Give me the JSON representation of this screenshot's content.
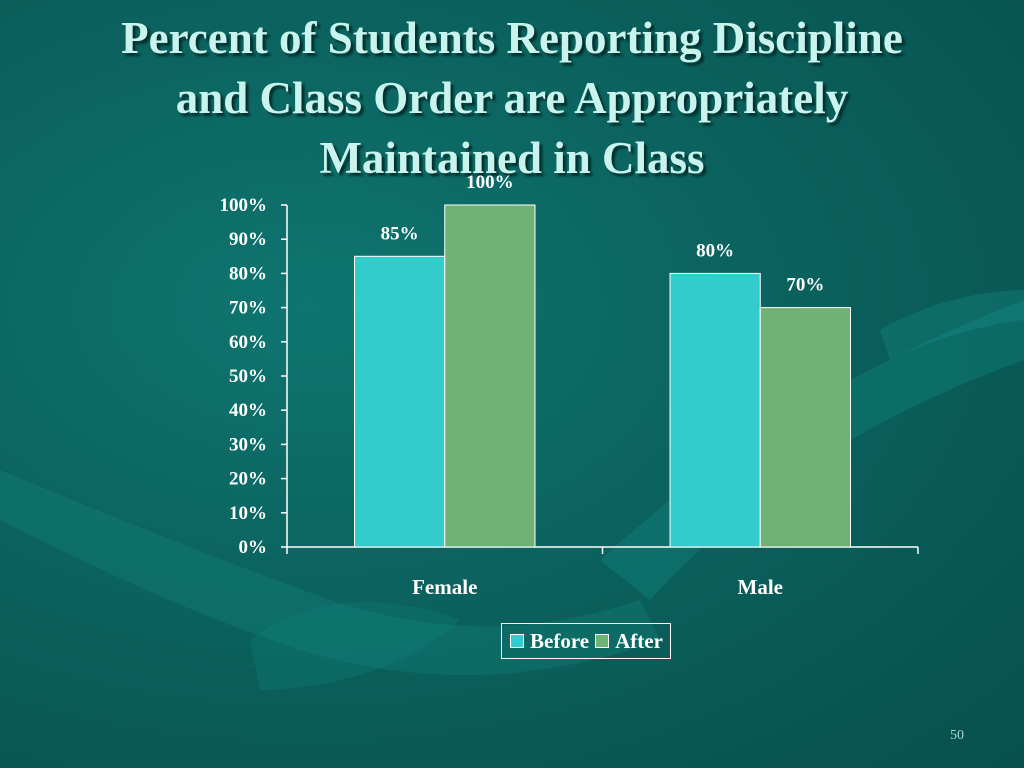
{
  "slide": {
    "title_lines": [
      "Percent of Students Reporting Discipline",
      "and Class Order are Appropriately",
      "Maintained in Class"
    ],
    "page_number": "50"
  },
  "colors": {
    "background": "#0b625e",
    "before": "#33cccc",
    "after": "#6fb276",
    "text": "#ffffff",
    "title": "#c9f4ee"
  },
  "chart_data": {
    "type": "bar",
    "title": "Percent of Students Reporting Discipline and Class Order are Appropriately Maintained in Class",
    "categories": [
      "Female",
      "Male"
    ],
    "series": [
      {
        "name": "Before",
        "values": [
          85,
          80
        ],
        "labels": [
          "85%",
          "80%"
        ]
      },
      {
        "name": "After",
        "values": [
          100,
          70
        ],
        "labels": [
          "100%",
          "70%"
        ]
      }
    ],
    "ylim": [
      0,
      100
    ],
    "yticks": [
      0,
      10,
      20,
      30,
      40,
      50,
      60,
      70,
      80,
      90,
      100
    ],
    "ytick_labels": [
      "0%",
      "10%",
      "20%",
      "30%",
      "40%",
      "50%",
      "60%",
      "70%",
      "80%",
      "90%",
      "100%"
    ],
    "xlabel": "",
    "ylabel": "",
    "grid": false,
    "legend_position": "bottom"
  }
}
